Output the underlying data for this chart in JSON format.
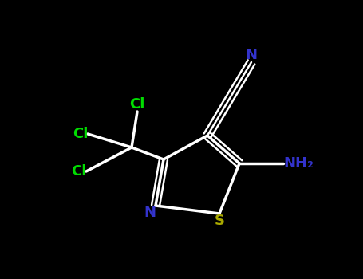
{
  "background_color": "#000000",
  "bond_color": "#ffffff",
  "bond_width": 2.5,
  "labels": {
    "Cl1": {
      "text": "Cl",
      "color": "#00dd00",
      "fontsize": 13,
      "ha": "right",
      "va": "center"
    },
    "Cl2": {
      "text": "Cl",
      "color": "#00dd00",
      "fontsize": 13,
      "ha": "right",
      "va": "bottom"
    },
    "Cl3": {
      "text": "Cl",
      "color": "#00dd00",
      "fontsize": 13,
      "ha": "right",
      "va": "center"
    },
    "N_ring": {
      "text": "N",
      "color": "#3333cc",
      "fontsize": 13,
      "ha": "right",
      "va": "center"
    },
    "S_ring": {
      "text": "S",
      "color": "#aaaa00",
      "fontsize": 13,
      "ha": "center",
      "va": "top"
    },
    "CN_N": {
      "text": "N",
      "color": "#3333cc",
      "fontsize": 13,
      "ha": "center",
      "va": "bottom"
    },
    "NH2": {
      "text": "NH₂",
      "color": "#3333cc",
      "fontsize": 13,
      "ha": "left",
      "va": "center"
    }
  },
  "figsize": [
    4.55,
    3.5
  ],
  "dpi": 100
}
